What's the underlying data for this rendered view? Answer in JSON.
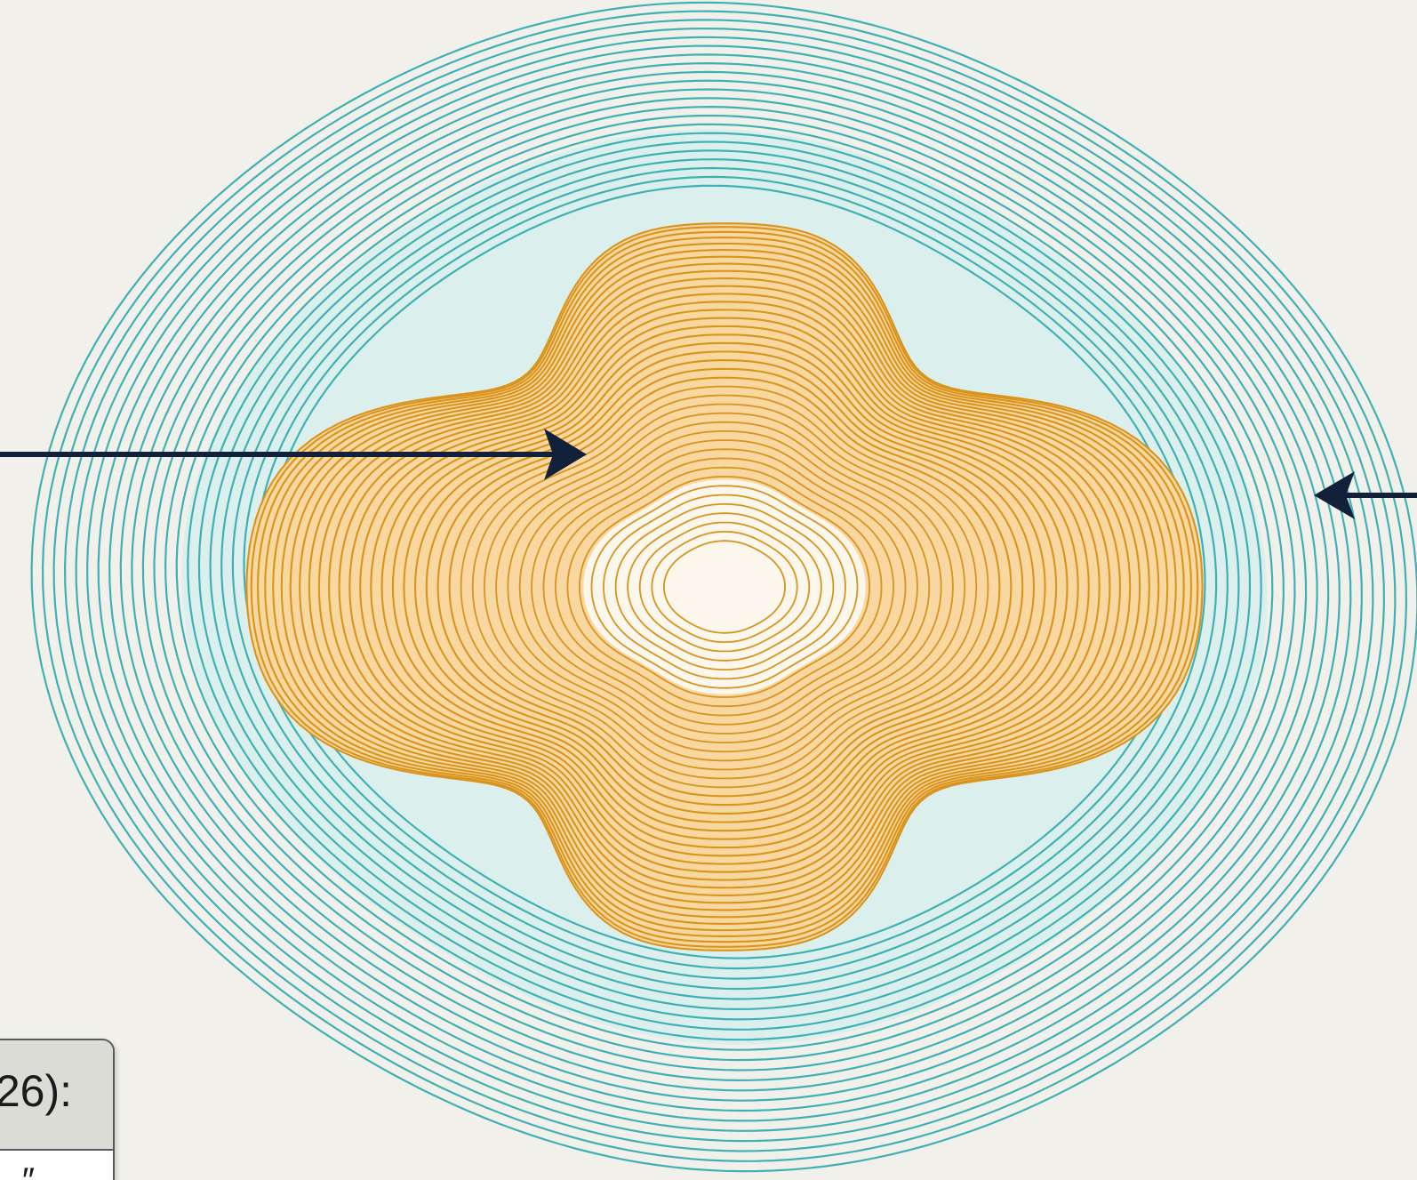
{
  "diagram": {
    "colors": {
      "background": "#f1f0ea",
      "outer_contours": "#3fb1b5",
      "outer_fill": "#c8efee",
      "inner_contours": "#d9941e",
      "inner_fill": "#f8d7a0",
      "core": "#fbf7ec",
      "arrows": "#132039"
    },
    "outer_ring_count": 22,
    "inner_ring_count": 40,
    "arrows": [
      {
        "name": "left-arrow",
        "direction": "right"
      },
      {
        "name": "right-arrow",
        "direction": "left"
      }
    ]
  },
  "panel": {
    "title": "26):",
    "body_text": "″"
  }
}
